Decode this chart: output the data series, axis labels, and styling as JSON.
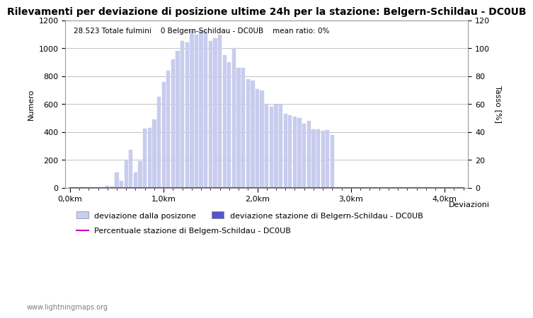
{
  "title": "Rilevamenti per deviazione di posizione ultime 24h per la stazione: Belgern-Schildau - DC0UB",
  "subtitle": "28.523 Totale fulmini    0 Belgern-Schildau - DC0UB    mean ratio: 0%",
  "ylabel_left": "Numero",
  "ylabel_right": "Tasso [%]",
  "xlabel_right": "Deviazioni",
  "watermark": "www.lightningmaps.org",
  "ylim_left": [
    0,
    1200
  ],
  "ylim_right": [
    0,
    120
  ],
  "yticks_left": [
    0,
    200,
    400,
    600,
    800,
    1000,
    1200
  ],
  "yticks_right": [
    0,
    20,
    40,
    60,
    80,
    100,
    120
  ],
  "xtick_labels": [
    "0,0km",
    "1,0km",
    "2,0km",
    "3,0km",
    "4,0km"
  ],
  "xtick_positions": [
    0,
    20,
    40,
    60,
    80
  ],
  "bar_color_light": "#c8ccee",
  "bar_color_dark": "#5555cc",
  "line_color": "#cc00cc",
  "background_color": "#ffffff",
  "grid_color": "#aaaaaa",
  "bar_values": [
    5,
    2,
    1,
    3,
    4,
    2,
    1,
    3,
    15,
    8,
    110,
    50,
    200,
    270,
    110,
    190,
    425,
    430,
    490,
    650,
    760,
    840,
    920,
    980,
    1050,
    1040,
    1130,
    1100,
    1130,
    1130,
    1050,
    1070,
    1100,
    950,
    900,
    1000,
    860,
    860,
    780,
    770,
    710,
    700,
    600,
    580,
    595,
    595,
    530,
    520,
    510,
    500,
    460,
    480,
    420,
    420,
    410,
    415,
    380,
    5,
    4,
    3,
    3,
    2,
    2,
    2,
    2,
    2,
    2,
    2,
    2,
    2,
    2,
    2,
    2,
    2,
    2,
    2,
    2,
    2,
    2,
    2,
    2,
    2,
    2,
    2,
    2
  ],
  "station_values": [
    0,
    0,
    0,
    0,
    0,
    0,
    0,
    0,
    0,
    0,
    0,
    0,
    0,
    0,
    0,
    0,
    0,
    0,
    0,
    0,
    0,
    0,
    0,
    0,
    0,
    0,
    0,
    0,
    0,
    0,
    0,
    0,
    0,
    0,
    0,
    0,
    0,
    0,
    0,
    0,
    0,
    0,
    0,
    0,
    0,
    0,
    0,
    0,
    0,
    0,
    0,
    0,
    0,
    0,
    0,
    0,
    0,
    0,
    0,
    0,
    0,
    0,
    0,
    0,
    0,
    0,
    0,
    0,
    0,
    0,
    0,
    0,
    0,
    0,
    0,
    0,
    0,
    0,
    0,
    0,
    0,
    0,
    0,
    0,
    0
  ],
  "ratio_values": [
    0,
    0,
    0,
    0,
    0,
    0,
    0,
    0,
    0,
    0,
    0,
    0,
    0,
    0,
    0,
    0,
    0,
    0,
    0,
    0,
    0,
    0,
    0,
    0,
    0,
    0,
    0,
    0,
    0,
    0,
    0,
    0,
    0,
    0,
    0,
    0,
    0,
    0,
    0,
    0,
    0,
    0,
    0,
    0,
    0,
    0,
    0,
    0,
    0,
    0,
    0,
    0,
    0,
    0,
    0,
    0,
    0,
    0,
    0,
    0,
    0,
    0,
    0,
    0,
    0,
    0,
    0,
    0,
    0,
    0,
    0,
    0,
    0,
    0,
    0,
    0,
    0,
    0,
    0,
    0,
    0,
    0,
    0,
    0,
    0
  ],
  "legend_labels": [
    "deviazione dalla posizone",
    "deviazione stazione di Belgern-Schildau - DC0UB",
    "Percentuale stazione di Belgem-Schildau - DC0UB"
  ],
  "title_fontsize": 10,
  "label_fontsize": 8,
  "tick_fontsize": 8,
  "legend_fontsize": 8
}
